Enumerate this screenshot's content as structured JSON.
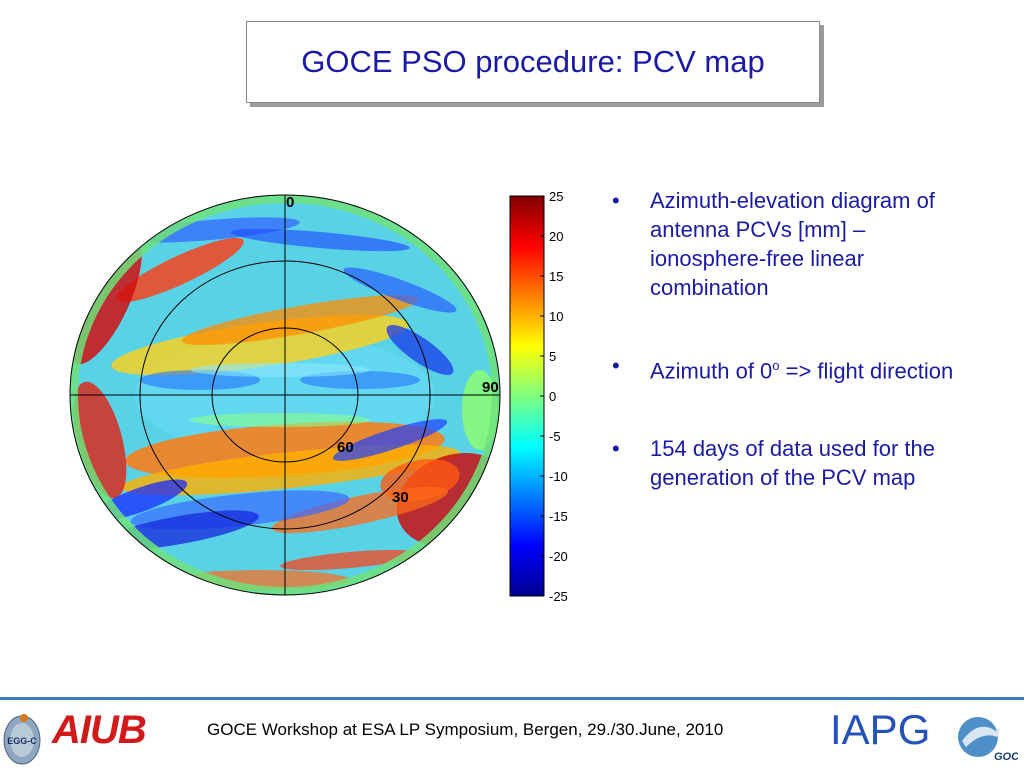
{
  "slide": {
    "title": "GOCE PSO procedure: PCV map",
    "bullets": [
      {
        "text": "Azimuth-elevation diagram of antenna PCVs [mm] – ionosphere-free linear combination"
      },
      {
        "text_before": "Azimuth of 0",
        "superscript": "o",
        "text_after": " => flight direction"
      },
      {
        "text": "154 days of data used for the generation of the PCV map"
      }
    ],
    "bullet_glyph": "•"
  },
  "figure": {
    "polar_labels": {
      "azimuth_0": "0",
      "azimuth_90": "90",
      "elevation_60": "60",
      "elevation_30": "30"
    },
    "colorbar": {
      "ticks": [
        "25",
        "20",
        "15",
        "10",
        "5",
        "0",
        "-5",
        "-10",
        "-15",
        "-20",
        "-25"
      ],
      "min": -25,
      "max": 25,
      "colormap": "jet"
    }
  },
  "footer": {
    "text": "GOCE Workshop at ESA LP Symposium, Bergen, 29./30.June, 2010",
    "logos": {
      "aiub": "AIUB",
      "iapg": "IAPG",
      "egg": "EGG-C",
      "goce": "GOCE"
    },
    "line_color": "#3a78c8"
  },
  "colors": {
    "title": "#1a1aa6",
    "body_text": "#1a1aa6",
    "aiub": "#d21a1a",
    "iapg": "#2452b8"
  }
}
